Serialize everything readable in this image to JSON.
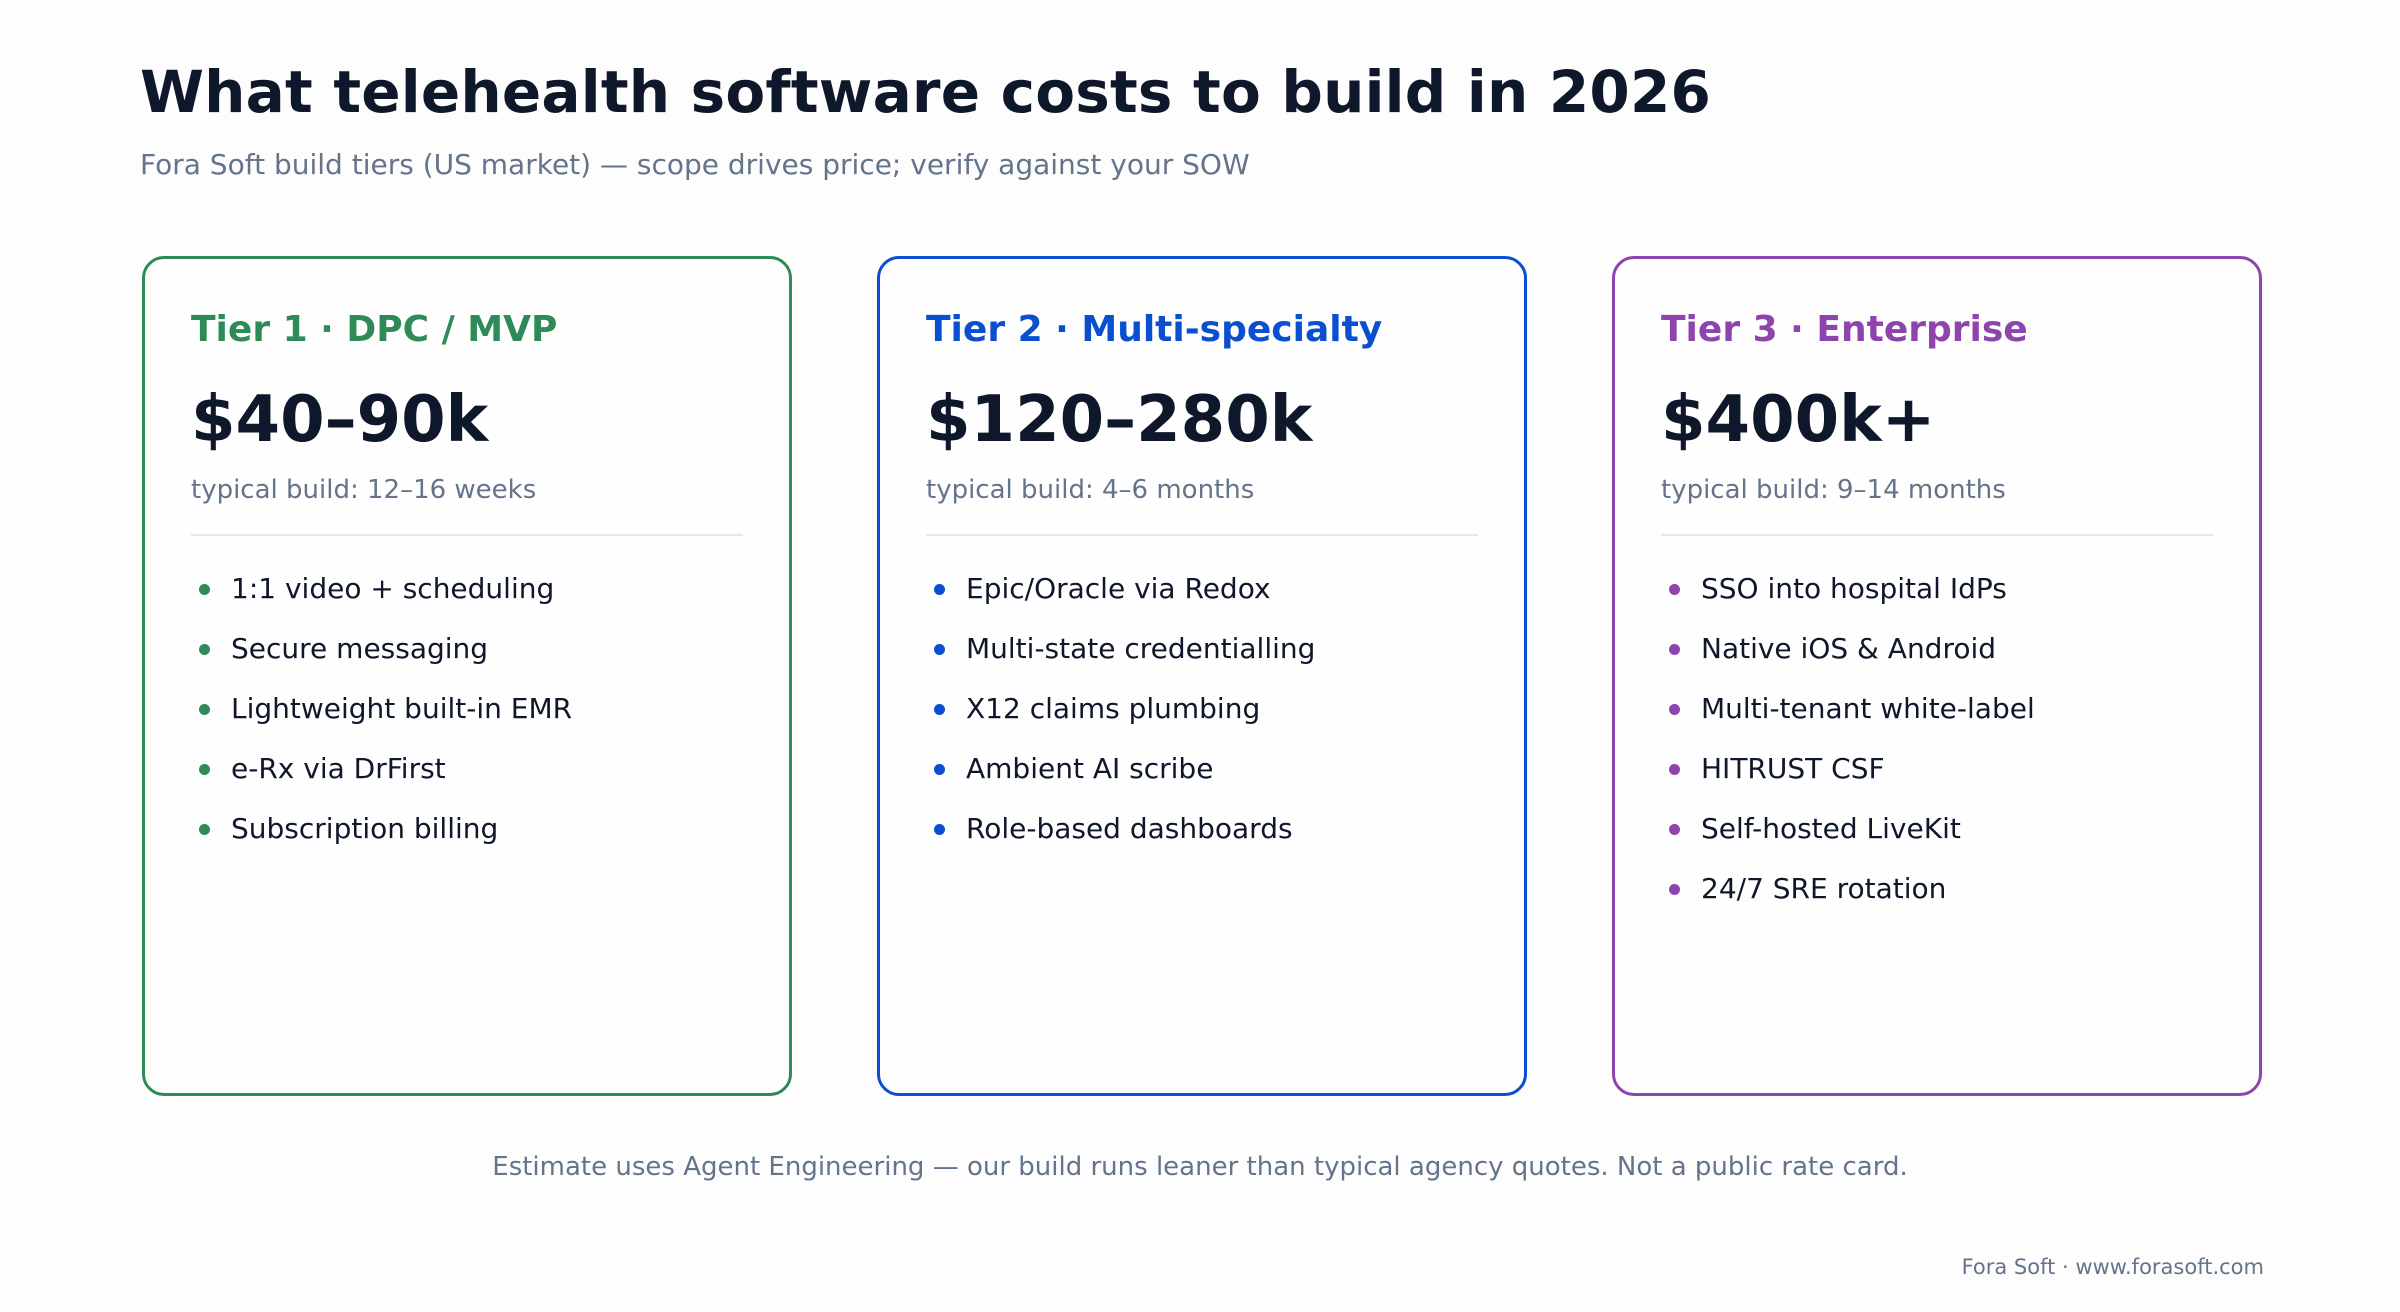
{
  "header": {
    "title": "What telehealth software costs to build in 2026",
    "subtitle": "Fora Soft build tiers (US market) — scope drives price; verify against your SOW"
  },
  "tiers": [
    {
      "title": "Tier 1 · DPC / MVP",
      "price": "$40–90k",
      "duration": "typical build: 12–16 weeks",
      "color": "#2e8b57",
      "features": [
        "1:1 video + scheduling",
        "Secure messaging",
        "Lightweight built-in EMR",
        "e-Rx via DrFirst",
        "Subscription billing"
      ]
    },
    {
      "title": "Tier 2 · Multi-specialty",
      "price": "$120–280k",
      "duration": "typical build: 4–6 months",
      "color": "#0b4fd1",
      "features": [
        "Epic/Oracle via Redox",
        "Multi-state credentialling",
        "X12 claims plumbing",
        "Ambient AI scribe",
        "Role-based dashboards"
      ]
    },
    {
      "title": "Tier 3 · Enterprise",
      "price": "$400k+",
      "duration": "typical build: 9–14 months",
      "color": "#8e44ad",
      "features": [
        "SSO into hospital IdPs",
        "Native iOS & Android",
        "Multi-tenant white-label",
        "HITRUST CSF",
        "Self-hosted LiveKit",
        "24/7 SRE rotation"
      ]
    }
  ],
  "footnote": "Estimate uses Agent Engineering — our build runs leaner than typical agency quotes. Not a public rate card.",
  "credit": "Fora Soft · www.forasoft.com"
}
